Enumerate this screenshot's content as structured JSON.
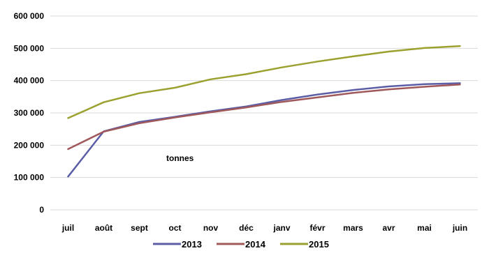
{
  "chart_data": {
    "type": "line",
    "categories": [
      "juil",
      "août",
      "sept",
      "oct",
      "nov",
      "déc",
      "janv",
      "févr",
      "mars",
      "avr",
      "mai",
      "juin"
    ],
    "series": [
      {
        "name": "2013",
        "color": "#5b5ea6",
        "values": [
          103000,
          243000,
          272000,
          288000,
          305000,
          320000,
          340000,
          357000,
          371000,
          382000,
          389000,
          392000
        ]
      },
      {
        "name": "2014",
        "color": "#a0585a",
        "values": [
          188000,
          242000,
          268000,
          286000,
          302000,
          317000,
          334000,
          348000,
          362000,
          373000,
          381000,
          388000
        ]
      },
      {
        "name": "2015",
        "color": "#9aa12e",
        "values": [
          284000,
          333000,
          361000,
          378000,
          404000,
          420000,
          441000,
          459000,
          475000,
          490000,
          501000,
          507000
        ]
      }
    ],
    "ylim": [
      0,
      600000
    ],
    "yticks": [
      0,
      100000,
      200000,
      300000,
      400000,
      500000,
      600000
    ],
    "ytick_labels": [
      "0",
      "100 000",
      "200 000",
      "300 000",
      "400 000",
      "500 000",
      "600 000"
    ],
    "grid": true,
    "legend_position": "bottom",
    "annotation": "tonnes",
    "title": "",
    "xlabel": "",
    "ylabel": ""
  }
}
